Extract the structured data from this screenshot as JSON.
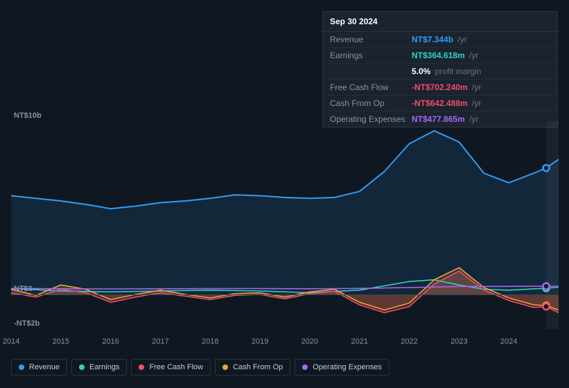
{
  "tooltip": {
    "date": "Sep 30 2024",
    "rows": [
      {
        "label": "Revenue",
        "value": "NT$7.344b",
        "suffix": "/yr",
        "color": "#2f9ef4"
      },
      {
        "label": "Earnings",
        "value": "NT$364.618m",
        "suffix": "/yr",
        "color": "#2dd4bf"
      },
      {
        "label": "",
        "value": "5.0%",
        "suffix": "profit margin",
        "color": "#ffffff"
      },
      {
        "label": "Free Cash Flow",
        "value": "-NT$702.240m",
        "suffix": "/yr",
        "color": "#ef4e6b"
      },
      {
        "label": "Cash From Op",
        "value": "-NT$642.488m",
        "suffix": "/yr",
        "color": "#ef4e6b"
      },
      {
        "label": "Operating Expenses",
        "value": "NT$477.865m",
        "suffix": "/yr",
        "color": "#a866f0"
      }
    ]
  },
  "chart": {
    "type": "area-line",
    "background_color": "#0f1720",
    "grid_color": "#3a4552",
    "ylim": [
      -2,
      10
    ],
    "y_ticks": [
      {
        "v": 10,
        "label": "NT$10b"
      },
      {
        "v": 0,
        "label": "NT$0"
      },
      {
        "v": -2,
        "label": "-NT$2b"
      }
    ],
    "x_years": [
      2014,
      2015,
      2016,
      2017,
      2018,
      2019,
      2020,
      2021,
      2022,
      2023,
      2024
    ],
    "x_range": [
      2014,
      2025
    ],
    "highlight_from": 2024.75,
    "series": [
      {
        "name": "Revenue",
        "color": "#2f9ef4",
        "fill": "rgba(47,158,244,0.12)",
        "line_width": 2,
        "area": true,
        "data": [
          [
            2014.0,
            5.7
          ],
          [
            2014.5,
            5.55
          ],
          [
            2015.0,
            5.4
          ],
          [
            2015.5,
            5.2
          ],
          [
            2016.0,
            4.95
          ],
          [
            2016.5,
            5.1
          ],
          [
            2017.0,
            5.3
          ],
          [
            2017.5,
            5.4
          ],
          [
            2018.0,
            5.55
          ],
          [
            2018.5,
            5.75
          ],
          [
            2019.0,
            5.7
          ],
          [
            2019.5,
            5.6
          ],
          [
            2020.0,
            5.55
          ],
          [
            2020.5,
            5.6
          ],
          [
            2021.0,
            5.95
          ],
          [
            2021.5,
            7.1
          ],
          [
            2022.0,
            8.7
          ],
          [
            2022.5,
            9.45
          ],
          [
            2023.0,
            8.8
          ],
          [
            2023.5,
            7.0
          ],
          [
            2024.0,
            6.45
          ],
          [
            2024.5,
            7.0
          ],
          [
            2024.75,
            7.3
          ],
          [
            2025.0,
            7.8
          ]
        ]
      },
      {
        "name": "Earnings",
        "color": "#2dd4bf",
        "fill": "none",
        "line_width": 1.6,
        "area": false,
        "data": [
          [
            2014.0,
            0.35
          ],
          [
            2015.0,
            0.2
          ],
          [
            2016.0,
            0.15
          ],
          [
            2017.0,
            0.2
          ],
          [
            2018.0,
            0.25
          ],
          [
            2019.0,
            0.2
          ],
          [
            2020.0,
            0.1
          ],
          [
            2021.0,
            0.25
          ],
          [
            2021.5,
            0.5
          ],
          [
            2022.0,
            0.75
          ],
          [
            2022.5,
            0.85
          ],
          [
            2023.0,
            0.55
          ],
          [
            2023.5,
            0.3
          ],
          [
            2024.0,
            0.25
          ],
          [
            2024.75,
            0.36
          ],
          [
            2025.0,
            0.42
          ]
        ]
      },
      {
        "name": "Free Cash Flow",
        "color": "#ef4e6b",
        "fill": "rgba(239,78,107,0.22)",
        "line_width": 1.6,
        "area": true,
        "data": [
          [
            2014.0,
            0.1
          ],
          [
            2014.5,
            -0.15
          ],
          [
            2015.0,
            0.3
          ],
          [
            2015.5,
            0.1
          ],
          [
            2016.0,
            -0.45
          ],
          [
            2016.5,
            -0.15
          ],
          [
            2017.0,
            0.1
          ],
          [
            2017.5,
            -0.1
          ],
          [
            2018.0,
            -0.3
          ],
          [
            2018.5,
            -0.05
          ],
          [
            2019.0,
            0.0
          ],
          [
            2019.5,
            -0.25
          ],
          [
            2020.0,
            0.05
          ],
          [
            2020.5,
            0.18
          ],
          [
            2021.0,
            -0.6
          ],
          [
            2021.5,
            -1.05
          ],
          [
            2022.0,
            -0.7
          ],
          [
            2022.5,
            0.6
          ],
          [
            2023.0,
            1.35
          ],
          [
            2023.5,
            0.25
          ],
          [
            2024.0,
            -0.35
          ],
          [
            2024.5,
            -0.75
          ],
          [
            2024.75,
            -0.7
          ],
          [
            2025.0,
            -1.05
          ]
        ]
      },
      {
        "name": "Cash From Op",
        "color": "#f0a33e",
        "fill": "rgba(240,163,62,0.18)",
        "line_width": 1.6,
        "area": true,
        "data": [
          [
            2014.0,
            0.3
          ],
          [
            2014.5,
            -0.05
          ],
          [
            2015.0,
            0.55
          ],
          [
            2015.5,
            0.3
          ],
          [
            2016.0,
            -0.3
          ],
          [
            2016.5,
            0.0
          ],
          [
            2017.0,
            0.25
          ],
          [
            2017.5,
            0.0
          ],
          [
            2018.0,
            -0.2
          ],
          [
            2018.5,
            0.05
          ],
          [
            2019.0,
            0.1
          ],
          [
            2019.5,
            -0.15
          ],
          [
            2020.0,
            0.15
          ],
          [
            2020.5,
            0.3
          ],
          [
            2021.0,
            -0.45
          ],
          [
            2021.5,
            -0.9
          ],
          [
            2022.0,
            -0.5
          ],
          [
            2022.5,
            0.85
          ],
          [
            2023.0,
            1.55
          ],
          [
            2023.5,
            0.4
          ],
          [
            2024.0,
            -0.2
          ],
          [
            2024.5,
            -0.6
          ],
          [
            2024.75,
            -0.64
          ],
          [
            2025.0,
            -0.9
          ]
        ]
      },
      {
        "name": "Operating Expenses",
        "color": "#a866f0",
        "fill": "none",
        "line_width": 1.6,
        "area": false,
        "data": [
          [
            2014.0,
            0.35
          ],
          [
            2015.0,
            0.33
          ],
          [
            2016.0,
            0.32
          ],
          [
            2017.0,
            0.33
          ],
          [
            2018.0,
            0.34
          ],
          [
            2019.0,
            0.34
          ],
          [
            2020.0,
            0.33
          ],
          [
            2021.0,
            0.35
          ],
          [
            2022.0,
            0.4
          ],
          [
            2023.0,
            0.46
          ],
          [
            2024.0,
            0.47
          ],
          [
            2024.75,
            0.48
          ],
          [
            2025.0,
            0.48
          ]
        ]
      }
    ],
    "endpoint_markers": [
      {
        "x": 2024.75,
        "y": 7.3,
        "color": "#2f9ef4"
      },
      {
        "x": 2024.75,
        "y": 0.36,
        "color": "#2dd4bf"
      },
      {
        "x": 2024.75,
        "y": 0.48,
        "color": "#a866f0"
      },
      {
        "x": 2024.75,
        "y": -0.64,
        "color": "#f0a33e"
      },
      {
        "x": 2024.75,
        "y": -0.7,
        "color": "#ef4e6b"
      }
    ]
  },
  "legend": [
    {
      "label": "Revenue",
      "color": "#2f9ef4"
    },
    {
      "label": "Earnings",
      "color": "#2dd4bf"
    },
    {
      "label": "Free Cash Flow",
      "color": "#ef4e6b"
    },
    {
      "label": "Cash From Op",
      "color": "#f0a33e"
    },
    {
      "label": "Operating Expenses",
      "color": "#a866f0"
    }
  ]
}
